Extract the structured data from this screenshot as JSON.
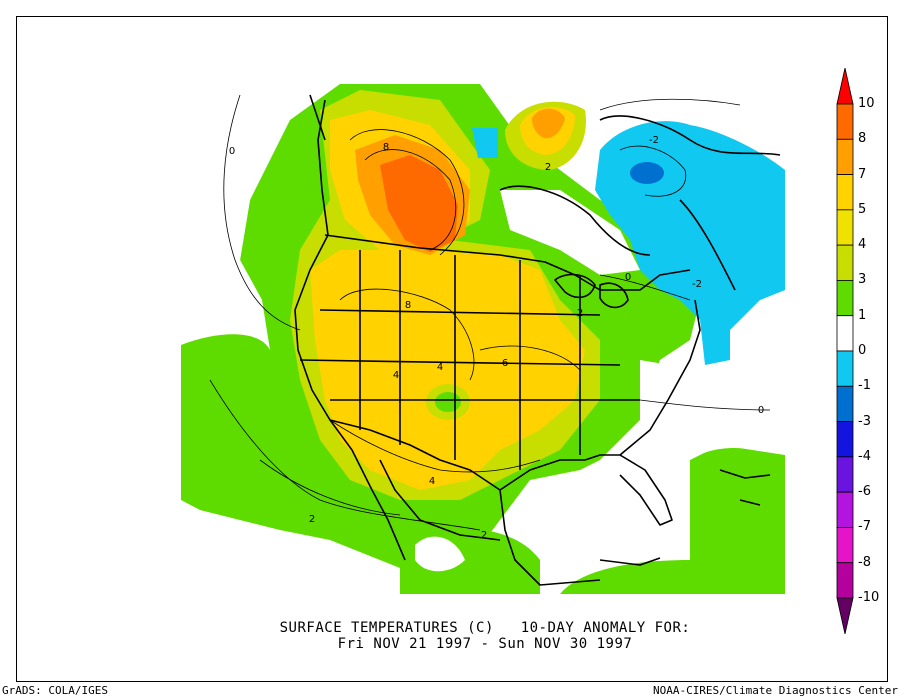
{
  "title_line1": "SURFACE TEMPERATURES (C)   10-DAY ANOMALY FOR:",
  "title_line2": "Fri NOV 21 1997 - Sun NOV 30 1997",
  "footer_left": "GrADS: COLA/IGES",
  "footer_right": "NOAA-CIRES/Climate Diagnostics Center",
  "legend": {
    "labels": [
      "10",
      "8",
      "7",
      "5",
      "4",
      "3",
      "1",
      "0",
      "-1",
      "-3",
      "-4",
      "-6",
      "-7",
      "-8",
      "-10"
    ],
    "colors": [
      "#ff0000",
      "#ff6a00",
      "#ffa000",
      "#ffd200",
      "#f0e200",
      "#c8de00",
      "#5edc00",
      "#ffffff",
      "#10c8f0",
      "#0070d0",
      "#1414e0",
      "#6a14e0",
      "#b414e0",
      "#e614c8",
      "#b4009c",
      "#640064"
    ]
  },
  "contour_labels": [
    "8",
    "2",
    "-2",
    "0",
    "-2",
    "8",
    "2",
    "4",
    "4",
    "6",
    "4",
    "2",
    "2",
    "0",
    "0"
  ],
  "colors": {
    "green": "#5edc00",
    "yellow_green": "#c8de00",
    "yellow": "#ffd200",
    "orange": "#ffa000",
    "dark_orange": "#ff6a00",
    "cyan": "#10c8f0",
    "blue": "#0070d0"
  }
}
